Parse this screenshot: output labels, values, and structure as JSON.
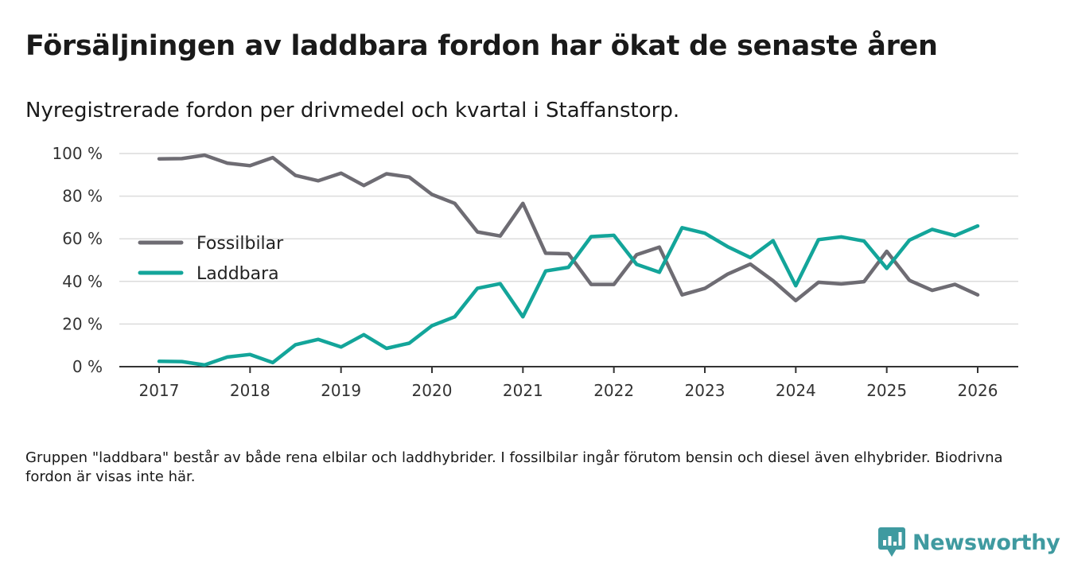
{
  "title": "Försäljningen av laddbara fordon har ökat de senaste åren",
  "subtitle": "Nyregistrerade fordon per drivmedel och kvartal i Staffanstorp.",
  "footnote": "Gruppen \"laddbara\" består av både rena elbilar och laddhybrider. I fossilbilar ingår förutom bensin och diesel även elhybrider. Biodrivna fordon är visas inte här.",
  "brand": {
    "name": "Newsworthy",
    "color": "#3f9aa0"
  },
  "chart_data": {
    "type": "line",
    "title": "Försäljningen av laddbara fordon har ökat de senaste åren",
    "xlabel": "",
    "ylabel": "",
    "xlim": [
      2017,
      2026
    ],
    "ylim": [
      0,
      100
    ],
    "grid": true,
    "legend_position": "left-middle",
    "x_ticks": [
      2017,
      2018,
      2019,
      2020,
      2021,
      2022,
      2023,
      2024,
      2025,
      2026
    ],
    "x_tick_labels": [
      "2017",
      "2018",
      "2019",
      "2020",
      "2021",
      "2022",
      "2023",
      "2024",
      "2025",
      "2026"
    ],
    "y_ticks": [
      0,
      20,
      40,
      60,
      80,
      100
    ],
    "y_tick_labels": [
      "0 %",
      "20 %",
      "40 %",
      "60 %",
      "80 %",
      "100 %"
    ],
    "x": [
      2017,
      2017.25,
      2017.5,
      2017.75,
      2018,
      2018.25,
      2018.5,
      2018.75,
      2019,
      2019.25,
      2019.5,
      2019.75,
      2020,
      2020.25,
      2020.5,
      2020.75,
      2021,
      2021.25,
      2021.5,
      2021.75,
      2022,
      2022.25,
      2022.5,
      2022.75,
      2023,
      2023.25,
      2023.5,
      2023.75,
      2024,
      2024.25,
      2024.5,
      2024.75,
      2025,
      2025.25,
      2025.5,
      2025.75,
      2026
    ],
    "series": [
      {
        "name": "Fossilbilar",
        "color": "#6e6c73",
        "values": [
          97.5,
          97.6,
          99.2,
          95.5,
          94.3,
          98.1,
          89.7,
          87.2,
          90.8,
          85,
          90.5,
          88.9,
          80.8,
          76.6,
          63.2,
          61.3,
          76.6,
          53.2,
          53,
          38.6,
          38.6,
          52.5,
          56.1,
          33.7,
          36.7,
          43.4,
          48.1,
          40.3,
          31,
          39.6,
          38.8,
          39.9,
          54.1,
          40.5,
          35.8,
          38.6,
          33.7
        ]
      },
      {
        "name": "Laddbara",
        "color": "#13a59a",
        "values": [
          2.5,
          2.4,
          0.8,
          4.5,
          5.7,
          1.9,
          10.3,
          12.8,
          9.2,
          15,
          8.6,
          11,
          19.2,
          23.4,
          36.8,
          38.9,
          23.4,
          44.9,
          46.6,
          61,
          61.6,
          48,
          44.3,
          65.2,
          62.6,
          56.3,
          51.2,
          59.1,
          38,
          59.6,
          60.9,
          58.9,
          46.1,
          59.4,
          64.4,
          61.5,
          66
        ]
      }
    ]
  }
}
